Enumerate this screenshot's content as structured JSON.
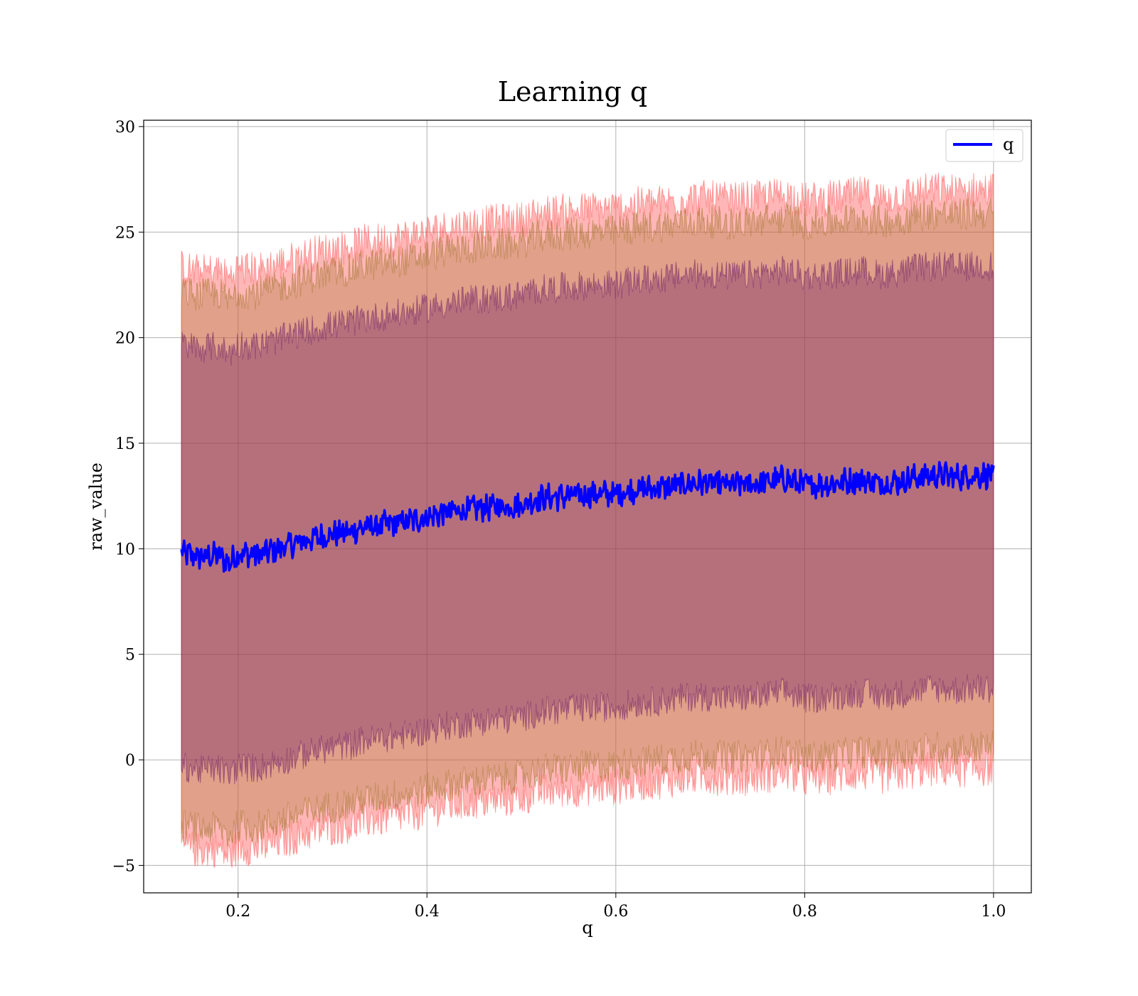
{
  "chart_data": {
    "type": "line",
    "title": "Learning q",
    "xlabel": "q",
    "ylabel": "raw_value",
    "xlim": [
      0.1,
      1.04
    ],
    "ylim": [
      -6.3,
      30.3
    ],
    "xticks": [
      0.2,
      0.4,
      0.6,
      0.8,
      1.0
    ],
    "xtick_labels": [
      "0.2",
      "0.4",
      "0.6",
      "0.8",
      "1.0"
    ],
    "yticks": [
      -5,
      0,
      5,
      10,
      15,
      20,
      25,
      30
    ],
    "ytick_labels": [
      "−5",
      "0",
      "5",
      "10",
      "15",
      "20",
      "25",
      "30"
    ],
    "grid": true,
    "legend": {
      "position": "top-right",
      "entries": [
        {
          "label": "q",
          "color": "#0000ff"
        }
      ]
    },
    "series": [
      {
        "name": "q",
        "color": "#0000ff",
        "x": [
          0.14,
          0.16,
          0.18,
          0.19,
          0.2,
          0.22,
          0.25,
          0.28,
          0.3,
          0.32,
          0.33,
          0.35,
          0.38,
          0.4,
          0.42,
          0.45,
          0.48,
          0.5,
          0.52,
          0.55,
          0.58,
          0.6,
          0.62,
          0.65,
          0.68,
          0.7,
          0.72,
          0.75,
          0.78,
          0.8,
          0.83,
          0.86,
          0.88,
          0.9,
          0.92,
          0.94,
          0.96,
          0.98,
          1.0
        ],
        "y": [
          9.8,
          9.6,
          9.7,
          9.3,
          9.8,
          9.7,
          10.1,
          10.5,
          10.7,
          10.8,
          11.0,
          11.1,
          11.3,
          11.5,
          11.7,
          11.9,
          12.0,
          12.1,
          12.4,
          12.5,
          12.6,
          12.6,
          12.8,
          12.9,
          13.1,
          13.1,
          13.0,
          13.1,
          13.3,
          13.0,
          13.1,
          13.3,
          13.1,
          13.2,
          13.4,
          13.5,
          13.4,
          13.5,
          13.5
        ]
      }
    ],
    "bands": [
      {
        "name": "",
        "color": "#ff5050",
        "opacity": 0.42,
        "lower_offset": -13.9,
        "upper_offset": 13.5,
        "noise": 0.55
      },
      {
        "name": "",
        "color": "#a0742a",
        "opacity": 0.32,
        "lower_offset": -12.9,
        "upper_offset": 12.4,
        "noise": 0.5
      },
      {
        "name": "",
        "color": "#6a1c66",
        "opacity": 0.36,
        "lower_offset": -10.1,
        "upper_offset": 9.9,
        "noise": 0.45
      }
    ]
  }
}
